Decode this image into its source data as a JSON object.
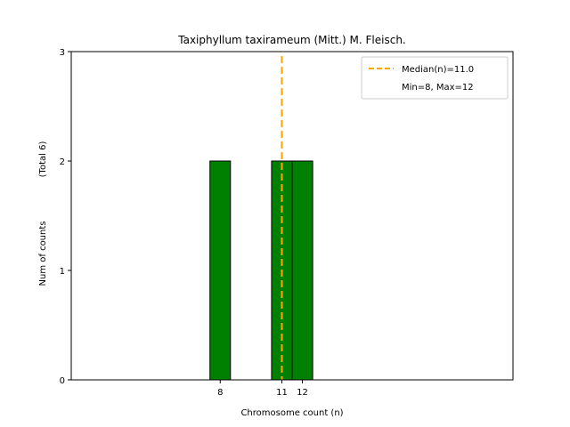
{
  "chart_data": {
    "type": "bar",
    "title": "Taxiphyllum taxirameum (Mitt.) M. Fleisch.",
    "xlabel": "Chromosome count (n)",
    "ylabel": "Num of counts",
    "ylabel_total": "(Total 6)",
    "categories": [
      8,
      11,
      12
    ],
    "values": [
      2,
      2,
      2
    ],
    "xlim": [
      0.75,
      22.25
    ],
    "ylim": [
      0,
      3
    ],
    "yticks": [
      0,
      1,
      2,
      3
    ],
    "xticks": [
      8,
      11,
      12
    ],
    "bar_color": "#008000",
    "bar_edge_color": "#000000",
    "median": 11.0,
    "median_color": "#FFA500",
    "legend": {
      "placement": "top-right",
      "median_label": "Median(n)=11.0",
      "range_label": "Min=8, Max=12"
    },
    "grid": false
  }
}
